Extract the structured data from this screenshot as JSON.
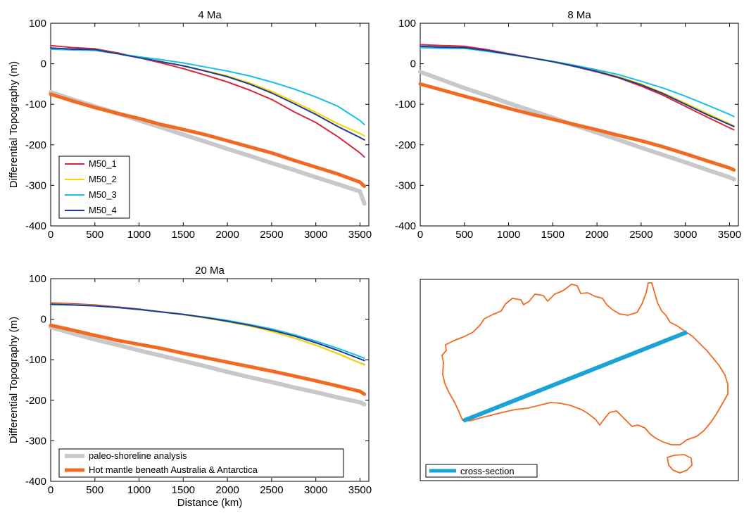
{
  "chart_data": [
    {
      "type": "line",
      "title": "4 Ma",
      "ylabel": "Differential Topography (m)",
      "xlabel": "",
      "xlim": [
        0,
        3600
      ],
      "ylim": [
        -400,
        100
      ],
      "xticks": [
        0,
        500,
        1000,
        1500,
        2000,
        2500,
        3000,
        3500
      ],
      "yticks": [
        -400,
        -300,
        -200,
        -100,
        0,
        100
      ],
      "legend": "bottom-left",
      "x": [
        0,
        250,
        500,
        750,
        1000,
        1250,
        1500,
        1750,
        2000,
        2250,
        2500,
        2750,
        3000,
        3250,
        3500,
        3550
      ],
      "series": [
        {
          "name": "M50_1",
          "color": "#d7263d",
          "width": 2,
          "in_legend": true,
          "values": [
            45,
            40,
            37,
            27,
            15,
            2,
            -12,
            -28,
            -45,
            -65,
            -88,
            -118,
            -145,
            -180,
            -220,
            -230
          ]
        },
        {
          "name": "M50_2",
          "color": "#f4d800",
          "width": 2,
          "in_legend": true,
          "values": [
            38,
            35,
            35,
            25,
            15,
            5,
            -5,
            -17,
            -30,
            -47,
            -68,
            -93,
            -120,
            -148,
            -172,
            -178
          ]
        },
        {
          "name": "M50_3",
          "color": "#19bfe6",
          "width": 2,
          "in_legend": true,
          "values": [
            36,
            34,
            33,
            25,
            17,
            10,
            2,
            -8,
            -18,
            -30,
            -45,
            -62,
            -82,
            -105,
            -140,
            -150
          ]
        },
        {
          "name": "M50_4",
          "color": "#1f3a93",
          "width": 2,
          "in_legend": true,
          "values": [
            39,
            36,
            35,
            25,
            15,
            5,
            -5,
            -18,
            -32,
            -50,
            -72,
            -98,
            -125,
            -155,
            -182,
            -188
          ]
        },
        {
          "name": "paleo-shoreline analysis",
          "color": "#c8c8c8",
          "width": 6,
          "in_legend": false,
          "values": [
            -70,
            -88,
            -105,
            -122,
            -140,
            -157,
            -175,
            -192,
            -210,
            -227,
            -245,
            -262,
            -280,
            -297,
            -315,
            -345
          ]
        },
        {
          "name": "Hot mantle beneath Australia & Antarctica",
          "color": "#f26a21",
          "width": 5,
          "in_legend": false,
          "values": [
            -75,
            -92,
            -108,
            -122,
            -135,
            -150,
            -162,
            -175,
            -190,
            -205,
            -220,
            -238,
            -255,
            -272,
            -292,
            -302
          ]
        }
      ]
    },
    {
      "type": "line",
      "title": "8 Ma",
      "ylabel": "",
      "xlabel": "",
      "xlim": [
        0,
        3600
      ],
      "ylim": [
        -400,
        100
      ],
      "xticks": [
        0,
        500,
        1000,
        1500,
        2000,
        2500,
        3000,
        3500
      ],
      "yticks": [
        -400,
        -300,
        -200,
        -100,
        0,
        100
      ],
      "legend": "none",
      "x": [
        0,
        250,
        500,
        750,
        1000,
        1250,
        1500,
        1750,
        2000,
        2250,
        2500,
        2750,
        3000,
        3250,
        3500,
        3550
      ],
      "series": [
        {
          "name": "M50_1",
          "color": "#d7263d",
          "width": 2,
          "values": [
            47,
            45,
            43,
            35,
            25,
            15,
            5,
            -7,
            -20,
            -35,
            -55,
            -78,
            -105,
            -132,
            -158,
            -163
          ]
        },
        {
          "name": "M50_2",
          "color": "#f4d800",
          "width": 2,
          "values": [
            42,
            40,
            39,
            32,
            23,
            14,
            5,
            -6,
            -18,
            -32,
            -50,
            -72,
            -97,
            -123,
            -148,
            -153
          ]
        },
        {
          "name": "M50_3",
          "color": "#19bfe6",
          "width": 2,
          "values": [
            40,
            38,
            38,
            31,
            23,
            15,
            6,
            -4,
            -15,
            -27,
            -43,
            -60,
            -80,
            -102,
            -125,
            -130
          ]
        },
        {
          "name": "M50_4",
          "color": "#1f3a93",
          "width": 2,
          "values": [
            43,
            41,
            40,
            33,
            24,
            15,
            5,
            -6,
            -19,
            -34,
            -52,
            -74,
            -100,
            -126,
            -150,
            -155
          ]
        },
        {
          "name": "paleo-shoreline analysis",
          "color": "#c8c8c8",
          "width": 6,
          "values": [
            -20,
            -40,
            -60,
            -78,
            -97,
            -115,
            -133,
            -152,
            -170,
            -188,
            -207,
            -225,
            -243,
            -262,
            -280,
            -285
          ]
        },
        {
          "name": "Hot mantle beneath Australia & Antarctica",
          "color": "#f26a21",
          "width": 5,
          "values": [
            -50,
            -65,
            -80,
            -95,
            -110,
            -124,
            -137,
            -150,
            -163,
            -177,
            -190,
            -205,
            -222,
            -240,
            -257,
            -262
          ]
        }
      ]
    },
    {
      "type": "line",
      "title": "20 Ma",
      "ylabel": "Differential Topography (m)",
      "xlabel": "Distance (km)",
      "xlim": [
        0,
        3600
      ],
      "ylim": [
        -400,
        100
      ],
      "xticks": [
        0,
        500,
        1000,
        1500,
        2000,
        2500,
        3000,
        3500
      ],
      "yticks": [
        -400,
        -300,
        -200,
        -100,
        0,
        100
      ],
      "legend": "bottom",
      "x": [
        0,
        250,
        500,
        750,
        1000,
        1250,
        1500,
        1750,
        2000,
        2250,
        2500,
        2750,
        3000,
        3250,
        3500,
        3550
      ],
      "series": [
        {
          "name": "M50_1",
          "color": "#d7263d",
          "width": 2,
          "in_legend": false,
          "values": [
            40,
            38,
            35,
            30,
            25,
            18,
            12,
            4,
            -5,
            -16,
            -30,
            -46,
            -64,
            -85,
            -108,
            -112
          ]
        },
        {
          "name": "M50_2",
          "color": "#f4d800",
          "width": 2,
          "in_legend": false,
          "values": [
            38,
            36,
            34,
            29,
            24,
            18,
            11,
            3,
            -6,
            -17,
            -30,
            -46,
            -64,
            -85,
            -108,
            -113
          ]
        },
        {
          "name": "M50_3",
          "color": "#19bfe6",
          "width": 2,
          "in_legend": false,
          "values": [
            36,
            35,
            33,
            29,
            24,
            18,
            12,
            5,
            -3,
            -13,
            -24,
            -38,
            -54,
            -72,
            -92,
            -96
          ]
        },
        {
          "name": "M50_4",
          "color": "#1f3a93",
          "width": 2,
          "in_legend": false,
          "values": [
            37,
            35,
            33,
            29,
            24,
            18,
            12,
            4,
            -5,
            -15,
            -27,
            -41,
            -58,
            -77,
            -98,
            -102
          ]
        },
        {
          "name": "paleo-shoreline analysis",
          "color": "#c8c8c8",
          "width": 6,
          "in_legend": true,
          "values": [
            -20,
            -35,
            -50,
            -63,
            -77,
            -90,
            -103,
            -116,
            -130,
            -143,
            -155,
            -168,
            -180,
            -193,
            -205,
            -210
          ]
        },
        {
          "name": "Hot mantle beneath Australia & Antarctica",
          "color": "#f26a21",
          "width": 5,
          "in_legend": true,
          "values": [
            -15,
            -27,
            -40,
            -52,
            -62,
            -72,
            -84,
            -95,
            -106,
            -117,
            -128,
            -140,
            -152,
            -165,
            -178,
            -185
          ]
        }
      ]
    }
  ],
  "map": {
    "outline_color": "#f26a21",
    "section_color": "#1ba3d8",
    "legend_label": "cross-section"
  }
}
